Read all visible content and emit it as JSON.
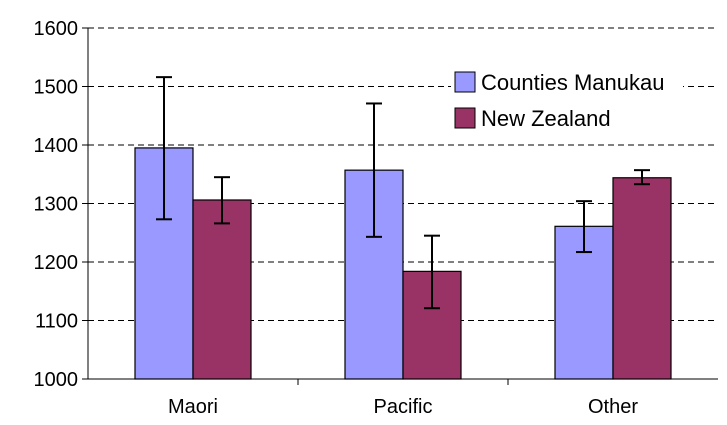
{
  "chart_data": {
    "type": "bar",
    "title": "",
    "xlabel": "",
    "ylabel": "",
    "ylim": [
      1000,
      1600
    ],
    "yticks": [
      1000,
      1100,
      1200,
      1300,
      1400,
      1500,
      1600
    ],
    "grid": "horizontal dashed",
    "legend_position": "top-right",
    "categories": [
      "Maori",
      "Pacific",
      "Other"
    ],
    "series": [
      {
        "name": "Counties Manukau",
        "color": "#9999ff",
        "values": [
          1395,
          1357,
          1261
        ],
        "error_low": [
          1273,
          1243,
          1217
        ],
        "error_high": [
          1516,
          1471,
          1304
        ]
      },
      {
        "name": "New Zealand",
        "color": "#993366",
        "values": [
          1306,
          1184,
          1344
        ],
        "error_low": [
          1266,
          1121,
          1333
        ],
        "error_high": [
          1345,
          1245,
          1357
        ]
      }
    ]
  }
}
